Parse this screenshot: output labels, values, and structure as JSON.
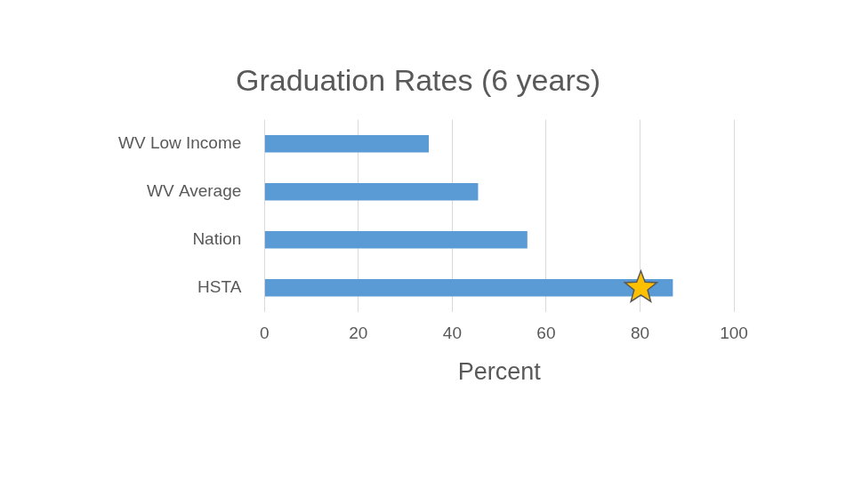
{
  "chart_data": {
    "type": "bar",
    "orientation": "horizontal",
    "title": "Graduation Rates (6 years)",
    "categories": [
      "WV Low Income",
      "WV Average",
      "Nation",
      "HSTA"
    ],
    "values": [
      35,
      45.5,
      56,
      87
    ],
    "color": "#5b9bd5",
    "xlabel": "Percent",
    "xlim": [
      0,
      100
    ],
    "xticks": [
      0,
      20,
      40,
      60,
      80,
      100
    ],
    "grid": true
  }
}
